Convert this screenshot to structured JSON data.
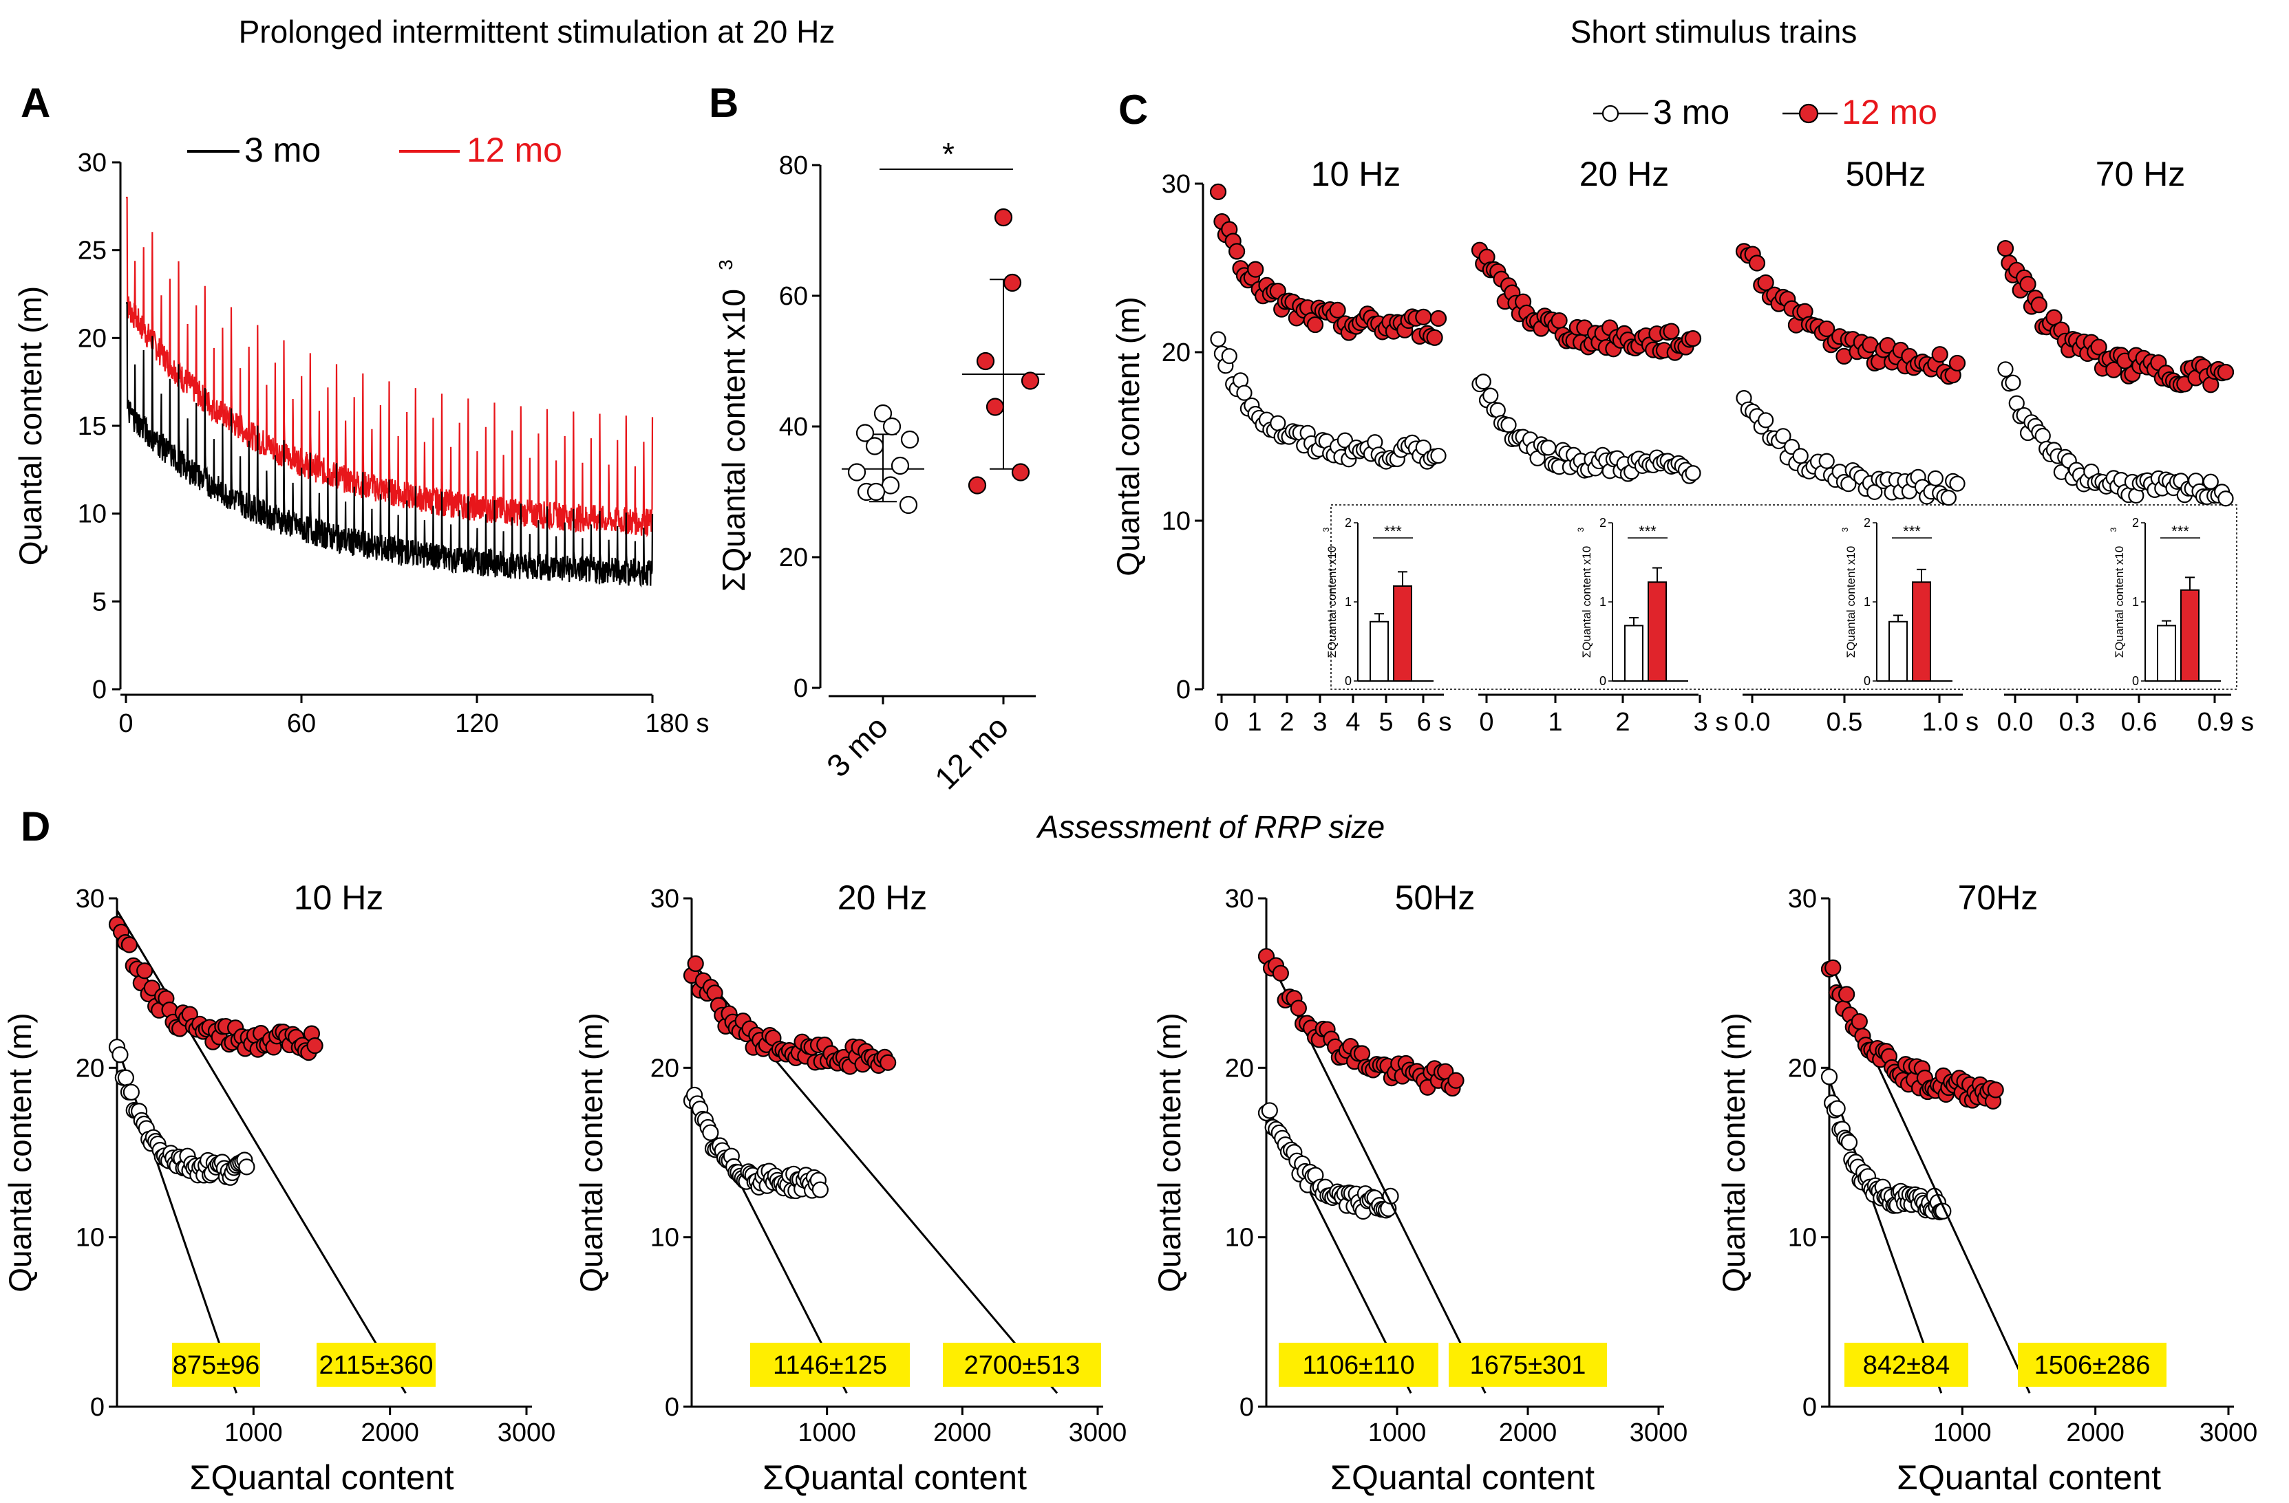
{
  "titles": {
    "left": "Prolonged intermittent stimulation at 20 Hz",
    "right": "Short stimulus trains",
    "bottom": "Assessment of RRP size"
  },
  "panel_letters": {
    "a": "A",
    "b": "B",
    "c": "C",
    "d": "D"
  },
  "colors": {
    "young": "#000000",
    "old": "#e8161b",
    "old_fill": "#e0242b",
    "young_fill": "#ffffff",
    "highlight": "#ffee00"
  },
  "chart_data": [
    {
      "id": "A",
      "type": "line",
      "title": "",
      "xlabel": "",
      "ylabel": "Quantal content (m)",
      "xlim": [
        0,
        180
      ],
      "ylim": [
        0,
        30
      ],
      "x_ticks": [
        0,
        60,
        120,
        180
      ],
      "x_tick_labels": [
        "0",
        "60",
        "120",
        "180 s"
      ],
      "y_ticks": [
        0,
        5,
        10,
        15,
        20,
        25,
        30
      ],
      "legend": [
        "3 mo",
        "12 mo"
      ],
      "series": [
        {
          "name": "3 mo",
          "color": "#000000",
          "start": 16,
          "end": 7,
          "peak_start": 22,
          "peak_end": 9.5,
          "burst_period_s": 3,
          "bursts": 60
        },
        {
          "name": "12 mo",
          "color": "#e8161b",
          "start": 22,
          "end": 10,
          "peak_start": 28,
          "peak_end": 15,
          "burst_period_s": 3,
          "bursts": 60
        }
      ]
    },
    {
      "id": "B",
      "type": "scatter",
      "ylabel": "ΣQuantal content x10",
      "ylabel_sup": "3",
      "ylim": [
        0,
        80
      ],
      "y_ticks": [
        0,
        20,
        40,
        60,
        80
      ],
      "categories": [
        "3 mo",
        "12 mo"
      ],
      "significance": "*",
      "series": [
        {
          "name": "3 mo",
          "values": [
            42,
            40,
            39,
            38,
            37,
            34,
            33,
            31,
            30,
            28,
            30
          ],
          "mean": 33.5,
          "sd_low": 28.5,
          "sd_high": 38.8
        },
        {
          "name": "12 mo",
          "values": [
            72,
            62,
            50,
            47,
            43,
            33,
            31
          ],
          "mean": 48,
          "sd_low": 33.5,
          "sd_high": 62.5
        }
      ]
    },
    {
      "id": "C",
      "type": "scatter",
      "ylabel": "Quantal content (m)",
      "ylim": [
        0,
        30
      ],
      "y_ticks": [
        0,
        10,
        20,
        30
      ],
      "legend": [
        "3 mo",
        "12 mo"
      ],
      "subplots": [
        {
          "label": "10 Hz",
          "x_tick_labels": [
            "0",
            "1",
            "2",
            "3",
            "4",
            "5",
            "6 s"
          ],
          "young": {
            "start": 21,
            "plateau": 14,
            "tau": 10,
            "n": 60
          },
          "old": {
            "start": 29,
            "plateau": 21.5,
            "tau": 10,
            "n": 60
          }
        },
        {
          "label": "20 Hz",
          "x_tick_labels": [
            "0",
            "1",
            "2",
            "3 s"
          ],
          "young": {
            "start": 18.5,
            "plateau": 13.2,
            "tau": 10,
            "n": 60
          },
          "old": {
            "start": 26,
            "plateau": 20.5,
            "tau": 12,
            "n": 60
          }
        },
        {
          "label": "50Hz",
          "x_tick_labels": [
            "0.0",
            "0.5",
            "1.0 s"
          ],
          "young": {
            "start": 17.5,
            "plateau": 11.8,
            "tau": 12,
            "n": 50
          },
          "old": {
            "start": 26.5,
            "plateau": 19,
            "tau": 14,
            "n": 50
          }
        },
        {
          "label": "70 Hz",
          "x_tick_labels": [
            "0.0",
            "0.3",
            "0.6",
            "0.9 s"
          ],
          "young": {
            "start": 19,
            "plateau": 11.8,
            "tau": 10,
            "n": 60
          },
          "old": {
            "start": 26,
            "plateau": 18.5,
            "tau": 14,
            "n": 60
          }
        }
      ],
      "insets": {
        "ylabel": "ΣQuantal content x10",
        "ylabel_sup": "3",
        "y_ticks": [
          "0",
          "1",
          "2"
        ],
        "significance": "***",
        "bars": [
          {
            "young": 0.75,
            "young_err": 0.1,
            "old": 1.2,
            "old_err": 0.18
          },
          {
            "young": 0.7,
            "young_err": 0.1,
            "old": 1.25,
            "old_err": 0.18
          },
          {
            "young": 0.75,
            "young_err": 0.08,
            "old": 1.25,
            "old_err": 0.16
          },
          {
            "young": 0.7,
            "young_err": 0.06,
            "old": 1.15,
            "old_err": 0.16
          }
        ]
      }
    },
    {
      "id": "D",
      "type": "scatter",
      "xlabel": "ΣQuantal content",
      "ylabel": "Quantal content (m)",
      "xlim": [
        0,
        3000
      ],
      "ylim": [
        0,
        30
      ],
      "x_ticks": [
        1000,
        2000,
        3000
      ],
      "y_ticks": [
        0,
        10,
        20,
        30
      ],
      "subplots": [
        {
          "label": "10 Hz",
          "young_rrp": "875±96",
          "old_rrp": "2115±360",
          "young": {
            "start": 21,
            "plateau": 14,
            "tau": 10,
            "n": 60,
            "fit_x": [
              0,
              875
            ]
          },
          "old": {
            "start": 29,
            "plateau": 21.5,
            "tau": 10,
            "n": 60,
            "fit_x": [
              0,
              2115
            ]
          }
        },
        {
          "label": "20 Hz",
          "young_rrp": "1146±125",
          "old_rrp": "2700±513",
          "young": {
            "start": 18.5,
            "plateau": 13.2,
            "tau": 10,
            "n": 60,
            "fit_x": [
              0,
              1146
            ]
          },
          "old": {
            "start": 26,
            "plateau": 20.5,
            "tau": 12,
            "n": 60,
            "fit_x": [
              0,
              2700
            ]
          }
        },
        {
          "label": "50Hz",
          "young_rrp": "1106±110",
          "old_rrp": "1675±301",
          "young": {
            "start": 17.5,
            "plateau": 11.8,
            "tau": 12,
            "n": 50,
            "fit_x": [
              0,
              1106
            ]
          },
          "old": {
            "start": 26.5,
            "plateau": 19,
            "tau": 14,
            "n": 50,
            "fit_x": [
              0,
              1675
            ]
          }
        },
        {
          "label": "70Hz",
          "young_rrp": "842±84",
          "old_rrp": "1506±286",
          "young": {
            "start": 19,
            "plateau": 12,
            "tau": 10,
            "n": 60,
            "fit_x": [
              0,
              842
            ]
          },
          "old": {
            "start": 26,
            "plateau": 18.5,
            "tau": 14,
            "n": 60,
            "fit_x": [
              0,
              1506
            ]
          }
        }
      ]
    }
  ]
}
